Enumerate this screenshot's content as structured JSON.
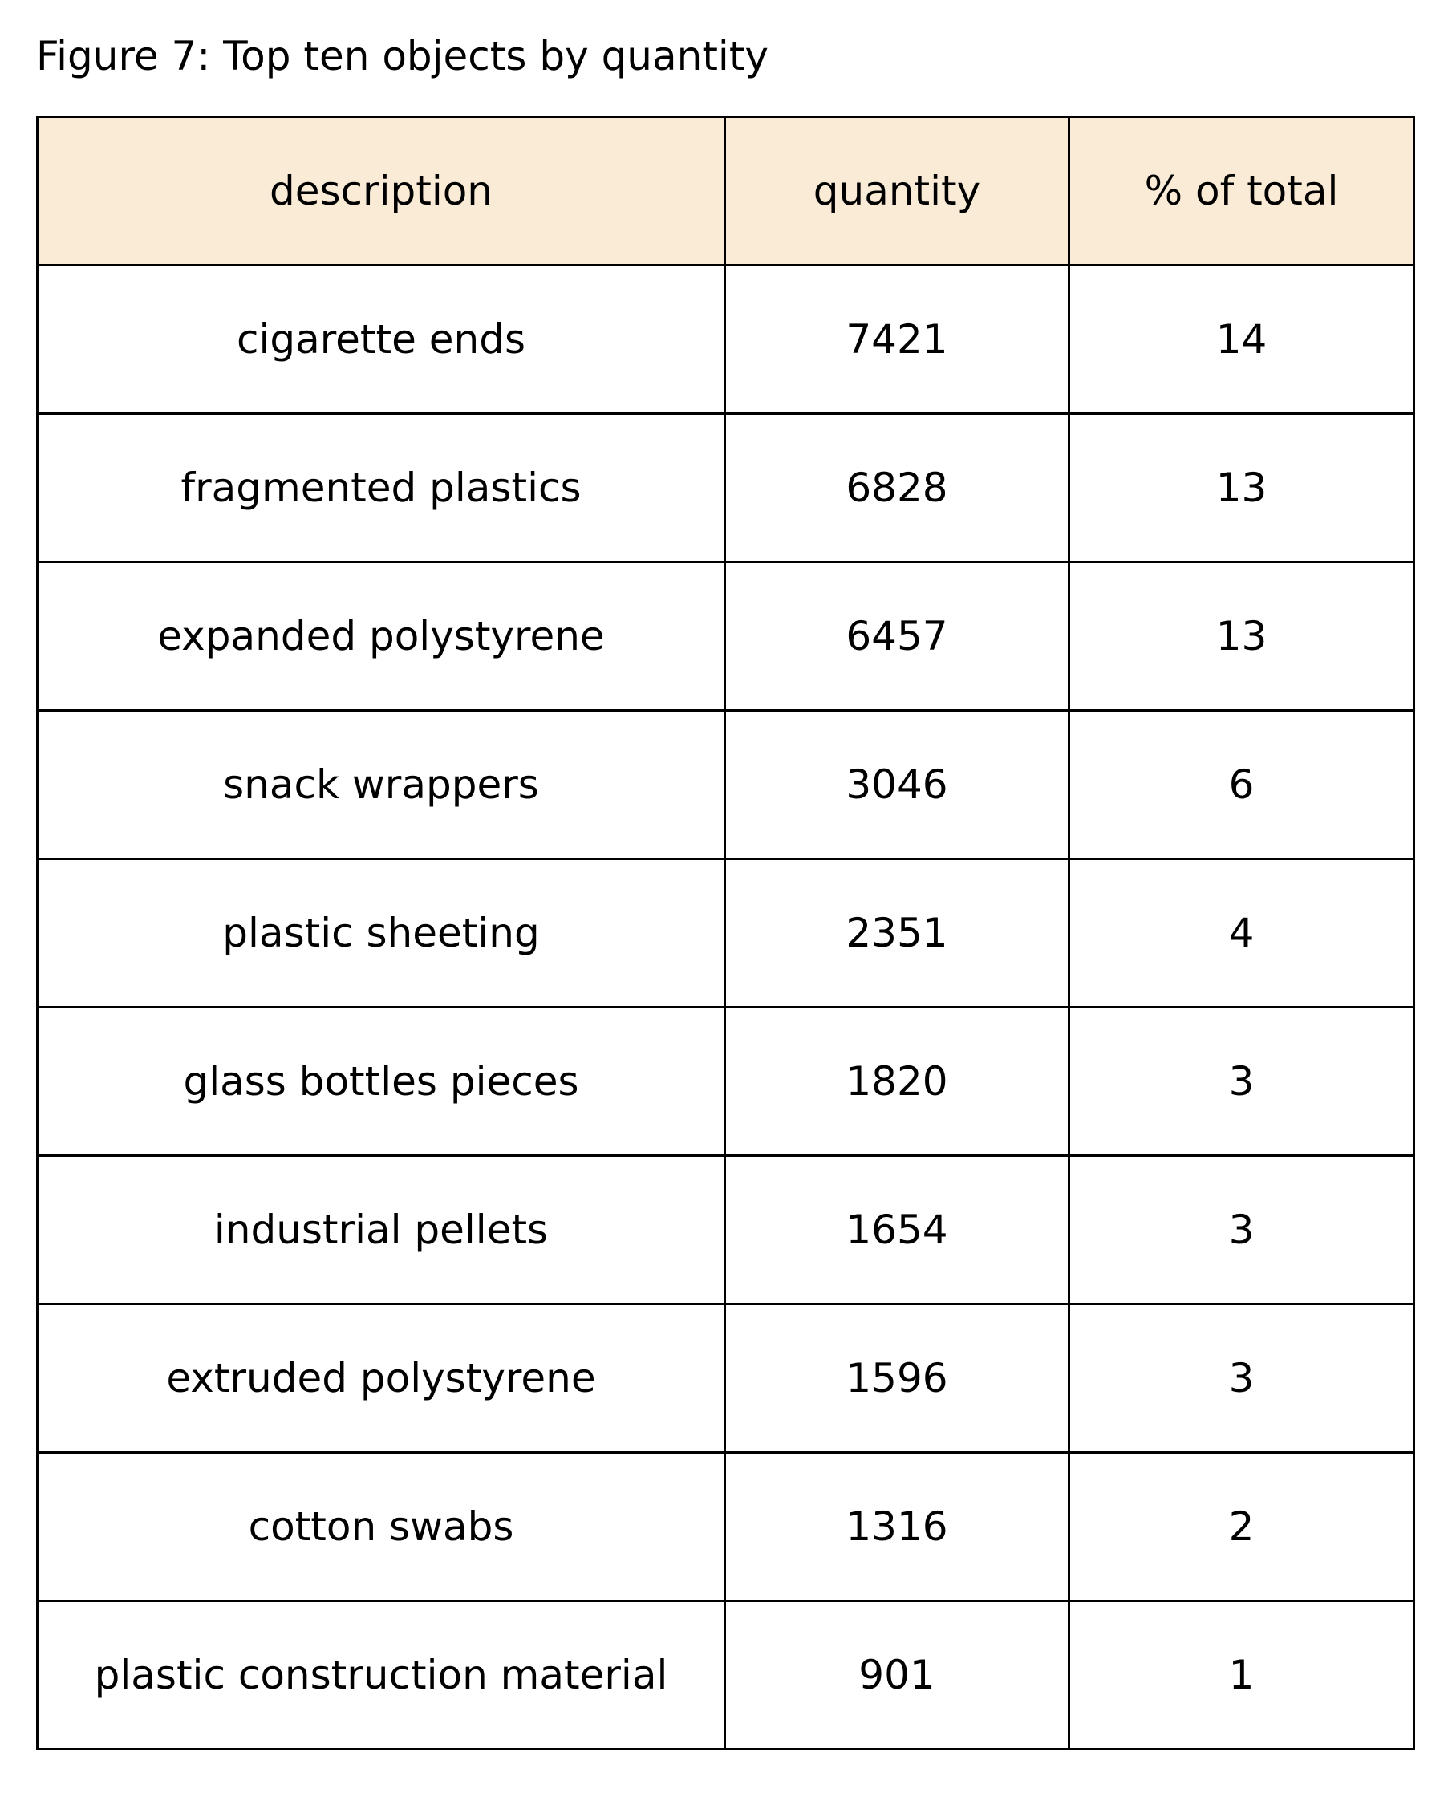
{
  "chart_data": {
    "type": "table",
    "title": "Figure 7: Top ten objects by quantity",
    "columns": [
      "description",
      "quantity",
      "% of total"
    ],
    "rows": [
      [
        "cigarette ends",
        "7421",
        "14"
      ],
      [
        "fragmented plastics",
        "6828",
        "13"
      ],
      [
        "expanded polystyrene",
        "6457",
        "13"
      ],
      [
        "snack wrappers",
        "3046",
        "6"
      ],
      [
        "plastic sheeting",
        "2351",
        "4"
      ],
      [
        "glass bottles pieces",
        "1820",
        "3"
      ],
      [
        "industrial pellets",
        "1654",
        "3"
      ],
      [
        "extruded polystyrene",
        "1596",
        "3"
      ],
      [
        "cotton swabs",
        "1316",
        "2"
      ],
      [
        "plastic construction material",
        "901",
        "1"
      ]
    ],
    "header_color": "#faebd7"
  }
}
